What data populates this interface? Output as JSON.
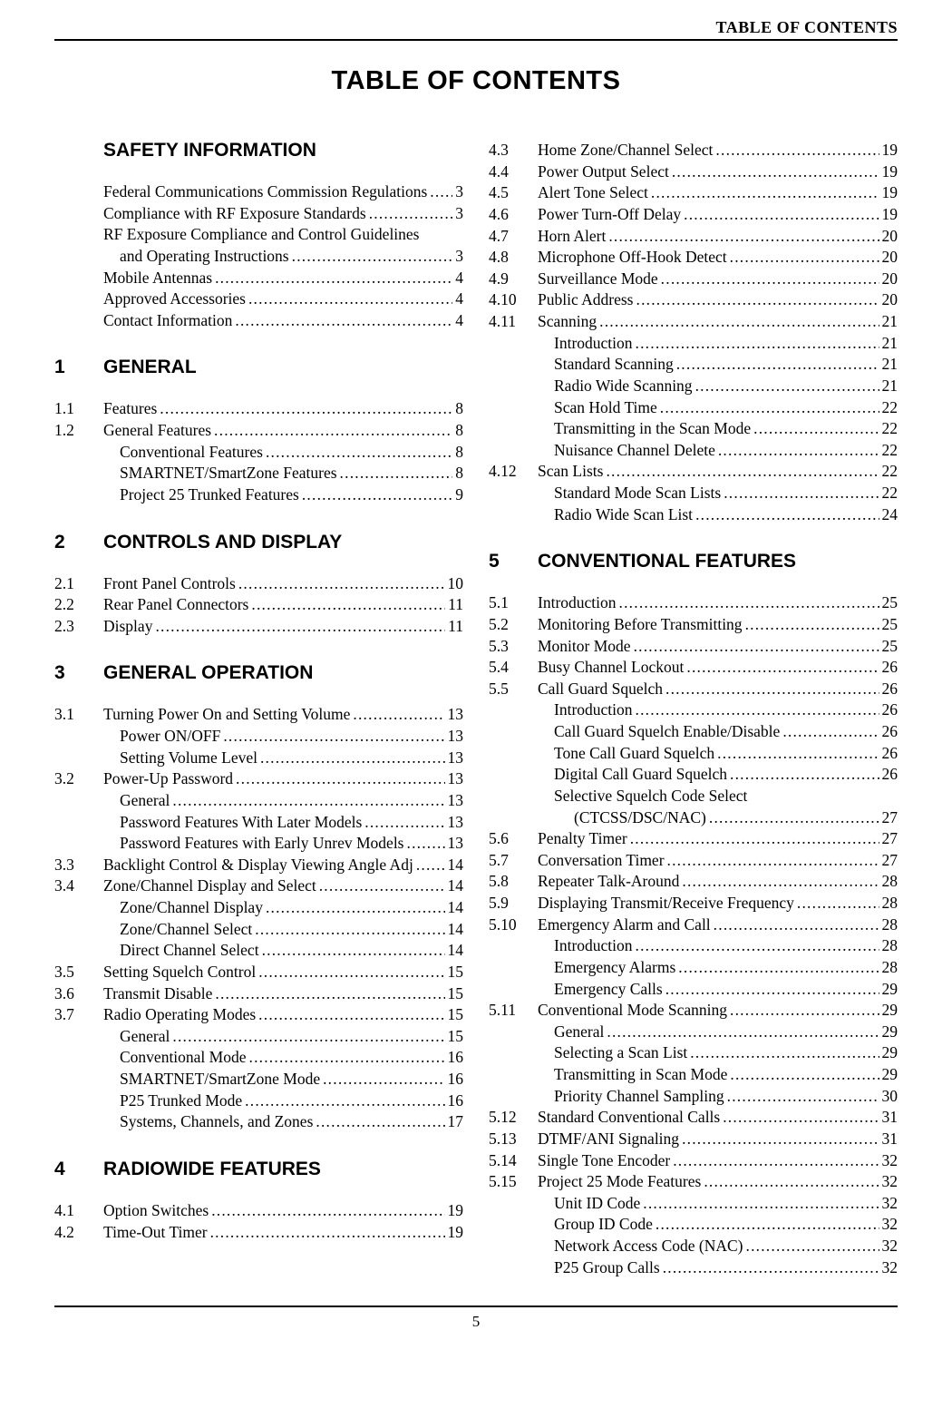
{
  "header": {
    "right": "TABLE OF CONTENTS"
  },
  "title": "TABLE OF CONTENTS",
  "page_number": "5",
  "dots_char": ".",
  "colors": {
    "text": "#000000",
    "bg": "#ffffff",
    "rule": "#000000"
  },
  "fonts": {
    "body_family": "Times New Roman",
    "heading_family": "Arial",
    "body_size_pt": 13,
    "heading_size_pt": 16,
    "title_size_pt": 22
  },
  "left_column": {
    "sections": [
      {
        "num": "",
        "title": "SAFETY INFORMATION",
        "entries": [
          {
            "num": "",
            "label": "Federal Communications Commission Regulations",
            "page": "3",
            "indent": 0
          },
          {
            "num": "",
            "label": "Compliance with RF Exposure Standards",
            "page": "3",
            "indent": 0
          },
          {
            "num": "",
            "label_lines": [
              "RF Exposure Compliance and Control Guidelines",
              "and Operating Instructions"
            ],
            "page": "3",
            "indent": 0,
            "cont_indent": 1
          },
          {
            "num": "",
            "label": "Mobile Antennas",
            "page": "4",
            "indent": 0
          },
          {
            "num": "",
            "label": "Approved Accessories",
            "page": "4",
            "indent": 0
          },
          {
            "num": "",
            "label": "Contact Information",
            "page": "4",
            "indent": 0
          }
        ]
      },
      {
        "num": "1",
        "title": "GENERAL",
        "entries": [
          {
            "num": "1.1",
            "label": "Features",
            "page": "8",
            "indent": 0
          },
          {
            "num": "1.2",
            "label": "General Features",
            "page": "8",
            "indent": 0
          },
          {
            "num": "",
            "label": "Conventional Features",
            "page": "8",
            "indent": 1
          },
          {
            "num": "",
            "label": "SMARTNET/SmartZone Features",
            "page": "8",
            "indent": 1
          },
          {
            "num": "",
            "label": "Project 25 Trunked Features",
            "page": "9",
            "indent": 1
          }
        ]
      },
      {
        "num": "2",
        "title": "CONTROLS AND DISPLAY",
        "entries": [
          {
            "num": "2.1",
            "label": "Front Panel Controls",
            "page": "10",
            "indent": 0
          },
          {
            "num": "2.2",
            "label": "Rear Panel Connectors",
            "page": "11",
            "indent": 0
          },
          {
            "num": "2.3",
            "label": "Display",
            "page": "11",
            "indent": 0
          }
        ]
      },
      {
        "num": "3",
        "title": "GENERAL OPERATION",
        "entries": [
          {
            "num": "3.1",
            "label": "Turning Power On and Setting Volume",
            "page": "13",
            "indent": 0
          },
          {
            "num": "",
            "label": "Power ON/OFF",
            "page": "13",
            "indent": 1
          },
          {
            "num": "",
            "label": "Setting Volume Level",
            "page": "13",
            "indent": 1
          },
          {
            "num": "3.2",
            "label": "Power-Up Password",
            "page": "13",
            "indent": 0
          },
          {
            "num": "",
            "label": "General",
            "page": "13",
            "indent": 1
          },
          {
            "num": "",
            "label": "Password Features With Later Models",
            "page": "13",
            "indent": 1
          },
          {
            "num": "",
            "label": "Password Features with Early Unrev Models",
            "page": "13",
            "indent": 1
          },
          {
            "num": "3.3",
            "label": "Backlight Control & Display Viewing Angle Adj",
            "page": "14",
            "indent": 0
          },
          {
            "num": "3.4",
            "label": "Zone/Channel Display and Select",
            "page": "14",
            "indent": 0
          },
          {
            "num": "",
            "label": "Zone/Channel Display",
            "page": "14",
            "indent": 1
          },
          {
            "num": "",
            "label": "Zone/Channel Select",
            "page": "14",
            "indent": 1
          },
          {
            "num": "",
            "label": "Direct Channel Select",
            "page": "14",
            "indent": 1
          },
          {
            "num": "3.5",
            "label": "Setting Squelch Control",
            "page": "15",
            "indent": 0
          },
          {
            "num": "3.6",
            "label": "Transmit Disable",
            "page": "15",
            "indent": 0
          },
          {
            "num": "3.7",
            "label": "Radio Operating Modes",
            "page": "15",
            "indent": 0
          },
          {
            "num": "",
            "label": "General",
            "page": "15",
            "indent": 1
          },
          {
            "num": "",
            "label": "Conventional Mode",
            "page": "16",
            "indent": 1
          },
          {
            "num": "",
            "label": "SMARTNET/SmartZone Mode",
            "page": "16",
            "indent": 1
          },
          {
            "num": "",
            "label": "P25 Trunked Mode",
            "page": "16",
            "indent": 1
          },
          {
            "num": "",
            "label": "Systems, Channels, and Zones",
            "page": "17",
            "indent": 1
          }
        ]
      },
      {
        "num": "4",
        "title": "RADIOWIDE FEATURES",
        "entries": [
          {
            "num": "4.1",
            "label": "Option Switches",
            "page": "19",
            "indent": 0
          },
          {
            "num": "4.2",
            "label": "Time-Out Timer",
            "page": "19",
            "indent": 0
          }
        ]
      }
    ]
  },
  "right_column": {
    "sections": [
      {
        "num": "",
        "title": "",
        "entries": [
          {
            "num": "4.3",
            "label": "Home Zone/Channel Select",
            "page": "19",
            "indent": 0
          },
          {
            "num": "4.4",
            "label": "Power Output Select",
            "page": "19",
            "indent": 0
          },
          {
            "num": "4.5",
            "label": "Alert Tone Select",
            "page": "19",
            "indent": 0
          },
          {
            "num": "4.6",
            "label": "Power Turn-Off Delay",
            "page": "19",
            "indent": 0
          },
          {
            "num": "4.7",
            "label": "Horn Alert",
            "page": "20",
            "indent": 0
          },
          {
            "num": "4.8",
            "label": "Microphone Off-Hook Detect",
            "page": "20",
            "indent": 0
          },
          {
            "num": "4.9",
            "label": "Surveillance Mode",
            "page": "20",
            "indent": 0
          },
          {
            "num": "4.10",
            "label": "Public Address",
            "page": "20",
            "indent": 0
          },
          {
            "num": "4.11",
            "label": "Scanning",
            "page": "21",
            "indent": 0
          },
          {
            "num": "",
            "label": "Introduction",
            "page": "21",
            "indent": 1
          },
          {
            "num": "",
            "label": "Standard Scanning",
            "page": "21",
            "indent": 1
          },
          {
            "num": "",
            "label": "Radio Wide Scanning",
            "page": "21",
            "indent": 1
          },
          {
            "num": "",
            "label": "Scan Hold Time",
            "page": "22",
            "indent": 1
          },
          {
            "num": "",
            "label": "Transmitting in the Scan Mode",
            "page": "22",
            "indent": 1
          },
          {
            "num": "",
            "label": "Nuisance Channel Delete",
            "page": "22",
            "indent": 1
          },
          {
            "num": "4.12",
            "label": "Scan Lists",
            "page": "22",
            "indent": 0
          },
          {
            "num": "",
            "label": "Standard Mode Scan Lists",
            "page": "22",
            "indent": 1
          },
          {
            "num": "",
            "label": "Radio Wide Scan List",
            "page": "24",
            "indent": 1
          }
        ]
      },
      {
        "num": "5",
        "title": "CONVENTIONAL FEATURES",
        "entries": [
          {
            "num": "5.1",
            "label": "Introduction",
            "page": "25",
            "indent": 0
          },
          {
            "num": "5.2",
            "label": "Monitoring Before Transmitting",
            "page": "25",
            "indent": 0
          },
          {
            "num": "5.3",
            "label": "Monitor Mode",
            "page": "25",
            "indent": 0
          },
          {
            "num": "5.4",
            "label": "Busy Channel Lockout",
            "page": "26",
            "indent": 0
          },
          {
            "num": "5.5",
            "label": "Call Guard Squelch",
            "page": "26",
            "indent": 0
          },
          {
            "num": "",
            "label": "Introduction",
            "page": "26",
            "indent": 1
          },
          {
            "num": "",
            "label": "Call Guard Squelch Enable/Disable",
            "page": "26",
            "indent": 1
          },
          {
            "num": "",
            "label": "Tone Call Guard Squelch",
            "page": "26",
            "indent": 1
          },
          {
            "num": "",
            "label": "Digital Call Guard Squelch",
            "page": "26",
            "indent": 1
          },
          {
            "num": "",
            "label_lines": [
              "Selective Squelch Code Select",
              "(CTCSS/DSC/NAC)"
            ],
            "page": "27",
            "indent": 1,
            "cont_indent": 2
          },
          {
            "num": "5.6",
            "label": "Penalty Timer",
            "page": "27",
            "indent": 0
          },
          {
            "num": "5.7",
            "label": "Conversation Timer",
            "page": "27",
            "indent": 0
          },
          {
            "num": "5.8",
            "label": "Repeater Talk-Around",
            "page": "28",
            "indent": 0
          },
          {
            "num": "5.9",
            "label": "Displaying Transmit/Receive Frequency",
            "page": "28",
            "indent": 0
          },
          {
            "num": "5.10",
            "label": "Emergency Alarm and Call",
            "page": "28",
            "indent": 0
          },
          {
            "num": "",
            "label": "Introduction",
            "page": "28",
            "indent": 1
          },
          {
            "num": "",
            "label": "Emergency Alarms",
            "page": "28",
            "indent": 1
          },
          {
            "num": "",
            "label": "Emergency Calls",
            "page": "29",
            "indent": 1
          },
          {
            "num": "5.11",
            "label": "Conventional Mode Scanning",
            "page": "29",
            "indent": 0
          },
          {
            "num": "",
            "label": "General",
            "page": "29",
            "indent": 1
          },
          {
            "num": "",
            "label": "Selecting a Scan List",
            "page": "29",
            "indent": 1
          },
          {
            "num": "",
            "label": "Transmitting in Scan Mode",
            "page": "29",
            "indent": 1
          },
          {
            "num": "",
            "label": "Priority Channel Sampling",
            "page": "30",
            "indent": 1
          },
          {
            "num": "5.12",
            "label": "Standard Conventional Calls",
            "page": "31",
            "indent": 0
          },
          {
            "num": "5.13",
            "label": "DTMF/ANI Signaling",
            "page": "31",
            "indent": 0
          },
          {
            "num": "5.14",
            "label": "Single Tone Encoder",
            "page": "32",
            "indent": 0
          },
          {
            "num": "5.15",
            "label": "Project 25 Mode Features",
            "page": "32",
            "indent": 0
          },
          {
            "num": "",
            "label": "Unit ID Code",
            "page": "32",
            "indent": 1
          },
          {
            "num": "",
            "label": "Group ID Code",
            "page": "32",
            "indent": 1
          },
          {
            "num": "",
            "label": "Network Access Code (NAC)",
            "page": "32",
            "indent": 1
          },
          {
            "num": "",
            "label": "P25 Group Calls",
            "page": "32",
            "indent": 1
          }
        ]
      }
    ]
  }
}
